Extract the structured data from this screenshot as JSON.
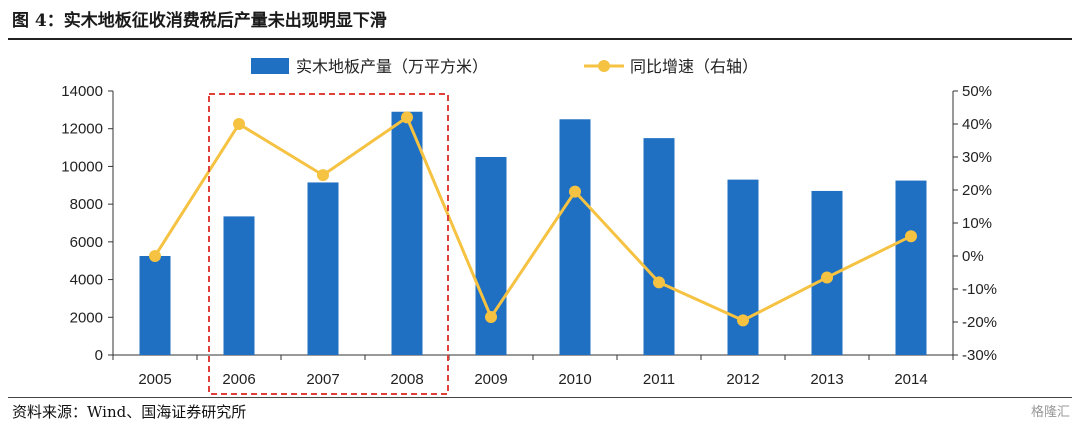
{
  "header": {
    "title": "图 4：实木地板征收消费税后产量未出现明显下滑"
  },
  "footer": {
    "source": "资料来源：Wind、国海证券研究所",
    "watermark": "格隆汇"
  },
  "colors": {
    "bar": "#1f6fc2",
    "line": "#f5c242",
    "highlight_box": "#e0403a"
  },
  "chart_data": {
    "type": "bar",
    "title": "实木地板征收消费税后产量未出现明显下滑",
    "categories": [
      "2005",
      "2006",
      "2007",
      "2008",
      "2009",
      "2010",
      "2011",
      "2012",
      "2013",
      "2014"
    ],
    "series": [
      {
        "name": "实木地板产量（万平方米）",
        "type": "bar",
        "axis": "left",
        "values": [
          5250,
          7350,
          9150,
          12900,
          10500,
          12500,
          11500,
          9300,
          8700,
          9250
        ]
      },
      {
        "name": "同比增速（右轴）",
        "type": "line",
        "axis": "right",
        "values": [
          0,
          40,
          24.5,
          42,
          -18.5,
          19.5,
          -8,
          -19.5,
          -6.5,
          6
        ]
      }
    ],
    "y_left": {
      "min": 0,
      "max": 14000,
      "step": 2000,
      "ticks": [
        "0",
        "2000",
        "4000",
        "6000",
        "8000",
        "10000",
        "12000",
        "14000"
      ]
    },
    "y_right": {
      "min": -30,
      "max": 50,
      "step": 10,
      "ticks": [
        "-30%",
        "-20%",
        "-10%",
        "0%",
        "10%",
        "20%",
        "30%",
        "40%",
        "50%"
      ]
    },
    "highlight": {
      "from": "2006",
      "to": "2008"
    },
    "legend_position": "top-center",
    "grid": false
  }
}
